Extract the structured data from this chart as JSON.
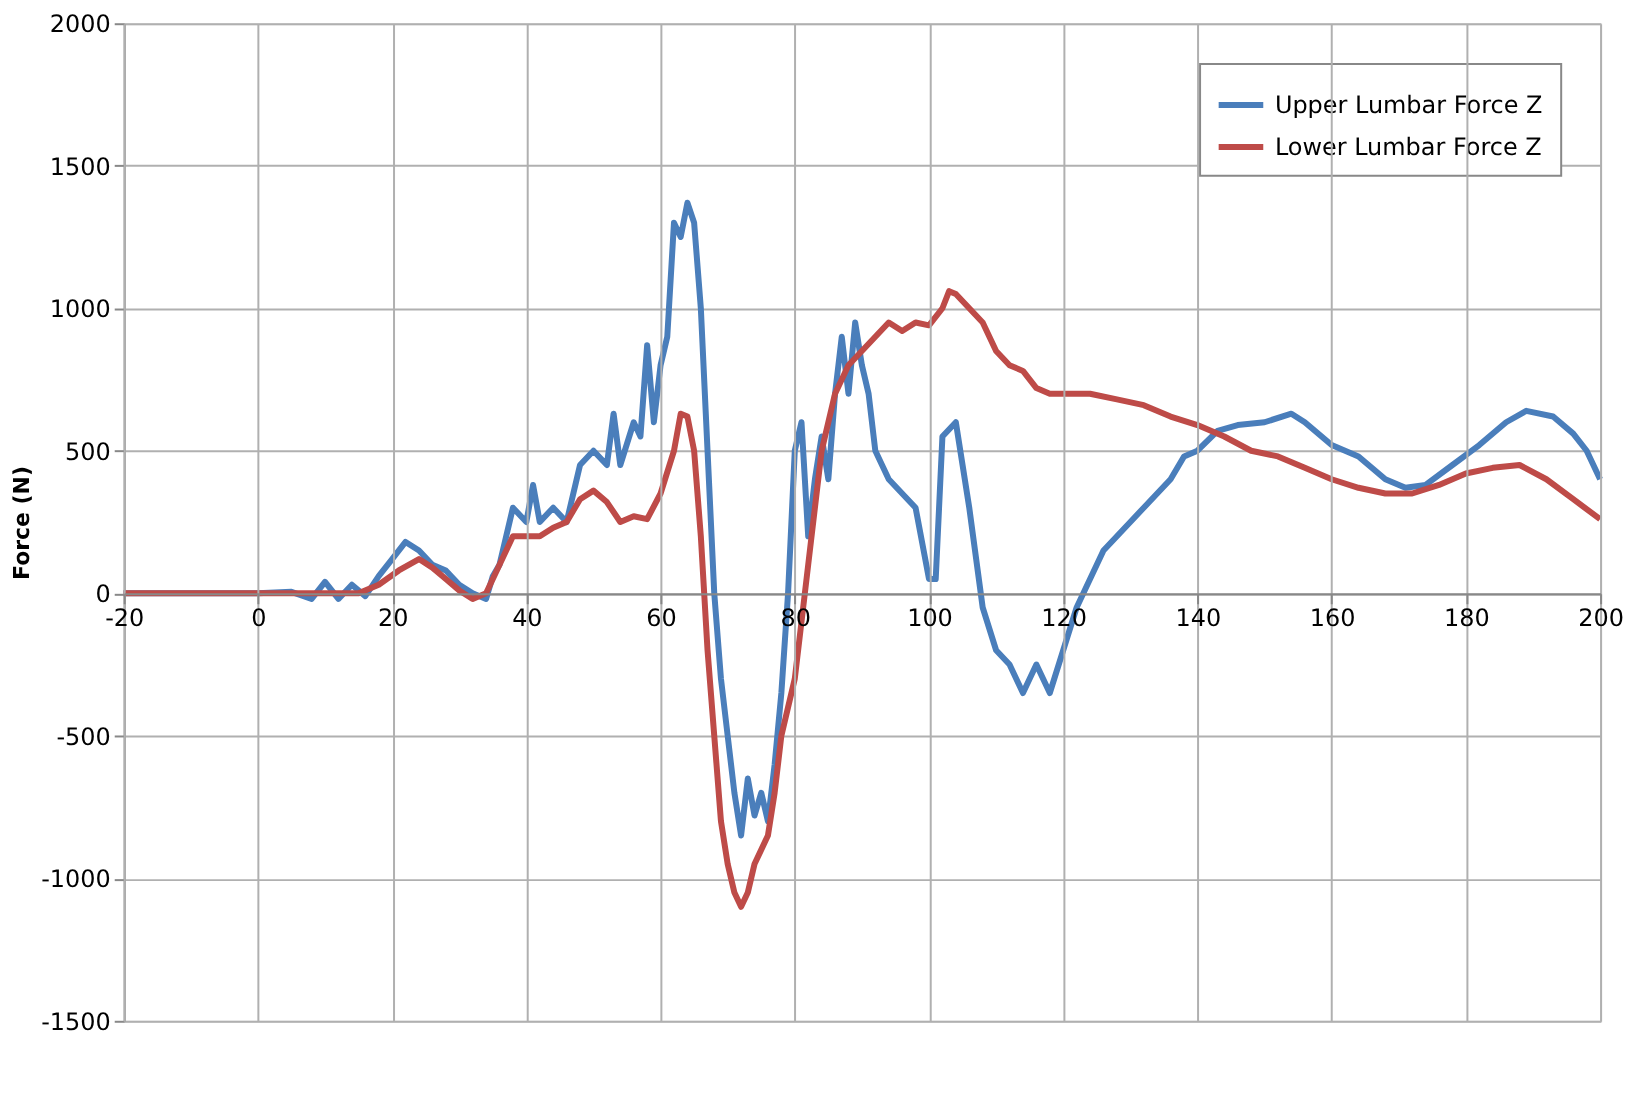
{
  "chart_data": {
    "type": "line",
    "ylabel": "Force (N)",
    "xlim": [
      -20,
      200
    ],
    "xticks": [
      -20,
      0,
      20,
      40,
      60,
      80,
      100,
      120,
      140,
      160,
      180,
      200
    ],
    "ylim": [
      -1500,
      2000
    ],
    "yticks": [
      -1500,
      -1000,
      -500,
      0,
      500,
      1000,
      1500,
      2000
    ],
    "grid": true,
    "legend": "top right",
    "marker": "none",
    "line_style": "solid",
    "series": [
      {
        "name": "Upper Lumbar Force Z",
        "color": "#4a7ebb",
        "x": [
          -20,
          -10,
          0,
          5,
          8,
          10,
          12,
          14,
          16,
          18,
          20,
          22,
          24,
          26,
          28,
          30,
          32,
          34,
          35,
          36,
          37,
          38,
          40,
          41,
          42,
          44,
          46,
          48,
          50,
          52,
          53,
          54,
          56,
          57,
          58,
          59,
          60,
          61,
          62,
          63,
          64,
          65,
          66,
          67,
          68,
          69,
          70,
          71,
          72,
          73,
          74,
          75,
          76,
          77,
          78,
          79,
          80,
          81,
          82,
          83,
          84,
          85,
          86,
          87,
          88,
          89,
          90,
          91,
          92,
          94,
          96,
          98,
          100,
          101,
          102,
          104,
          105,
          106,
          108,
          110,
          112,
          114,
          116,
          118,
          120,
          122,
          124,
          126,
          128,
          130,
          132,
          134,
          136,
          138,
          140,
          143,
          146,
          150,
          154,
          156,
          160,
          164,
          168,
          171,
          174,
          178,
          182,
          186,
          189,
          193,
          196,
          198,
          200
        ],
        "values": [
          0,
          0,
          0,
          5,
          -20,
          40,
          -20,
          30,
          -10,
          60,
          120,
          180,
          150,
          100,
          80,
          30,
          0,
          -20,
          60,
          100,
          200,
          300,
          250,
          380,
          250,
          300,
          250,
          450,
          500,
          450,
          630,
          450,
          600,
          550,
          870,
          600,
          800,
          900,
          1300,
          1250,
          1370,
          1300,
          1000,
          500,
          0,
          -300,
          -500,
          -700,
          -850,
          -650,
          -780,
          -700,
          -800,
          -600,
          -350,
          0,
          500,
          600,
          200,
          400,
          550,
          400,
          700,
          900,
          700,
          950,
          800,
          700,
          500,
          400,
          350,
          300,
          50,
          50,
          550,
          600,
          450,
          300,
          -50,
          -200,
          -250,
          -350,
          -250,
          -350,
          -200,
          -50,
          50,
          150,
          200,
          250,
          300,
          350,
          400,
          480,
          500,
          570,
          590,
          600,
          630,
          600,
          520,
          480,
          400,
          370,
          380,
          450,
          520,
          600,
          640,
          620,
          560,
          500,
          400
        ]
      },
      {
        "name": "Lower Lumbar Force Z",
        "color": "#be4b48",
        "x": [
          -20,
          0,
          6,
          10,
          15,
          18,
          21,
          24,
          26,
          28,
          30,
          32,
          34,
          35,
          37,
          38,
          42,
          44,
          46,
          48,
          50,
          52,
          54,
          56,
          58,
          60,
          62,
          63,
          64,
          65,
          66,
          67,
          68,
          69,
          70,
          71,
          72,
          73,
          74,
          76,
          77,
          78,
          80,
          82,
          84,
          86,
          88,
          90,
          92,
          94,
          96,
          98,
          100,
          102,
          103,
          104,
          106,
          108,
          110,
          112,
          114,
          116,
          118,
          120,
          124,
          128,
          132,
          136,
          140,
          144,
          148,
          152,
          156,
          160,
          164,
          168,
          172,
          176,
          180,
          184,
          188,
          192,
          196,
          200
        ],
        "values": [
          0,
          0,
          0,
          0,
          0,
          30,
          80,
          120,
          90,
          50,
          10,
          -20,
          0,
          50,
          150,
          200,
          200,
          230,
          250,
          330,
          360,
          320,
          250,
          270,
          260,
          350,
          500,
          630,
          620,
          500,
          200,
          -200,
          -500,
          -800,
          -950,
          -1050,
          -1100,
          -1050,
          -950,
          -850,
          -700,
          -500,
          -300,
          100,
          500,
          700,
          800,
          850,
          900,
          950,
          920,
          950,
          940,
          1000,
          1060,
          1050,
          1000,
          950,
          850,
          800,
          780,
          720,
          700,
          700,
          700,
          680,
          660,
          620,
          590,
          550,
          500,
          480,
          440,
          400,
          370,
          350,
          350,
          380,
          420,
          440,
          450,
          400,
          330,
          260
        ]
      }
    ]
  }
}
